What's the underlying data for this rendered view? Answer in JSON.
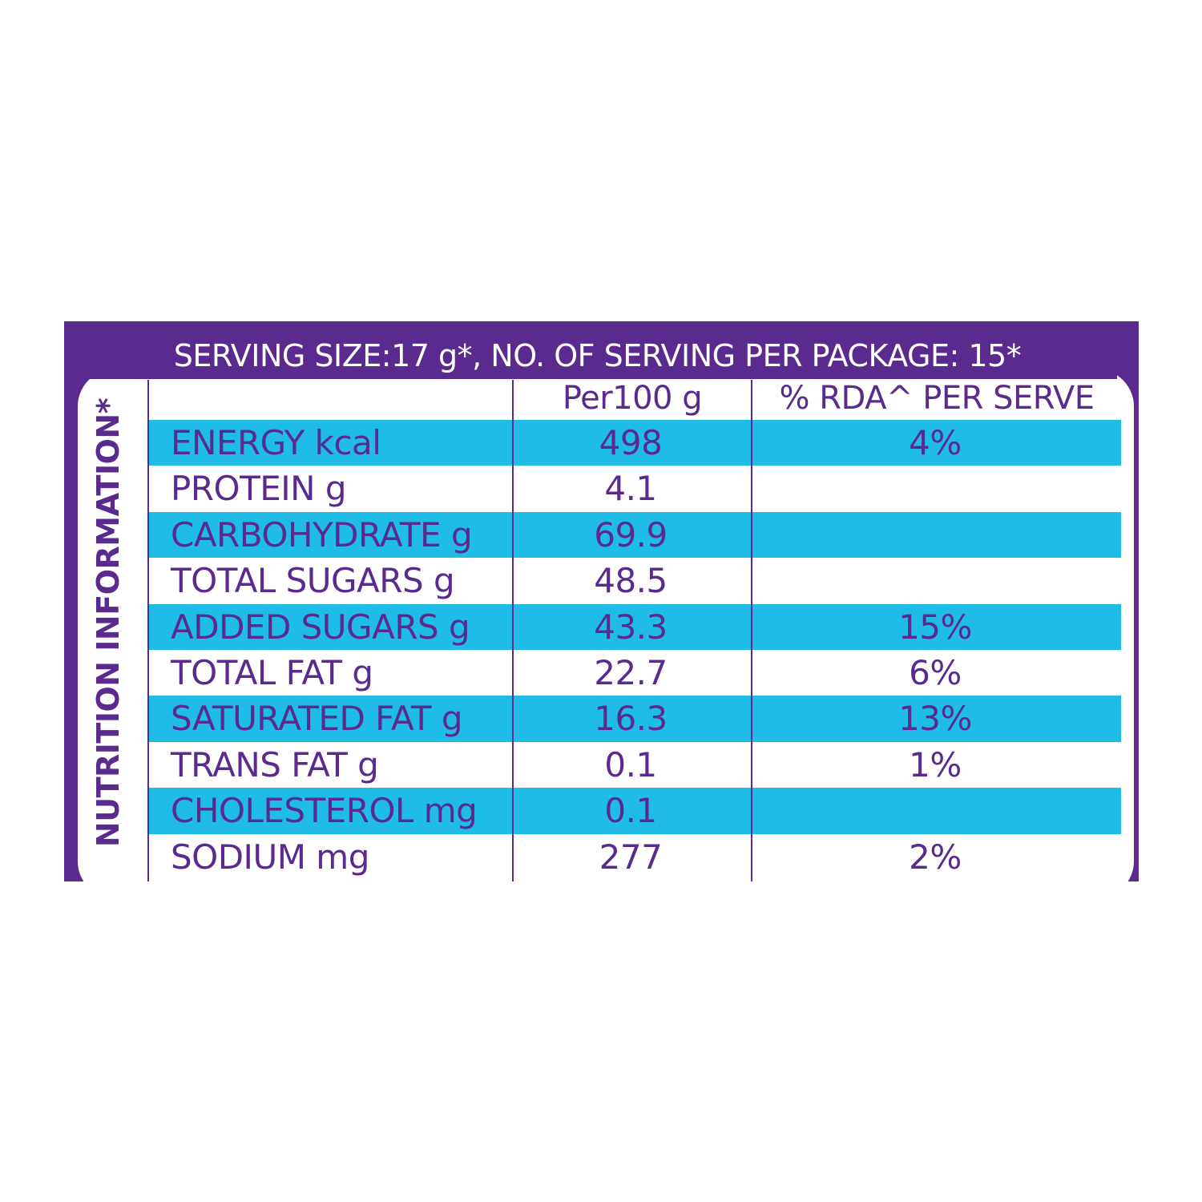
{
  "serving_header": "SERVING SIZE:17 g*, NO. OF SERVING PER PACKAGE: 15*",
  "side_title": "NUTRITION INFORMATION*",
  "columns": {
    "per100": "Per100 g",
    "rda": "% RDA^ PER SERVE"
  },
  "colors": {
    "purple": "#5a2a8e",
    "blue": "#1fbce8",
    "white": "#ffffff"
  },
  "rows": [
    {
      "name": "ENERGY kcal",
      "per100": "498",
      "rda": "4%"
    },
    {
      "name": "PROTEIN g",
      "per100": "4.1",
      "rda": ""
    },
    {
      "name": "CARBOHYDRATE g",
      "per100": "69.9",
      "rda": ""
    },
    {
      "name": "TOTAL SUGARS g",
      "per100": "48.5",
      "rda": ""
    },
    {
      "name": "ADDED SUGARS g",
      "per100": "43.3",
      "rda": "15%"
    },
    {
      "name": "TOTAL FAT g",
      "per100": "22.7",
      "rda": "6%"
    },
    {
      "name": "SATURATED FAT g",
      "per100": "16.3",
      "rda": "13%"
    },
    {
      "name": "TRANS FAT g",
      "per100": "0.1",
      "rda": "1%"
    },
    {
      "name": "CHOLESTEROL mg",
      "per100": "0.1",
      "rda": ""
    },
    {
      "name": "SODIUM mg",
      "per100": "277",
      "rda": "2%"
    }
  ]
}
